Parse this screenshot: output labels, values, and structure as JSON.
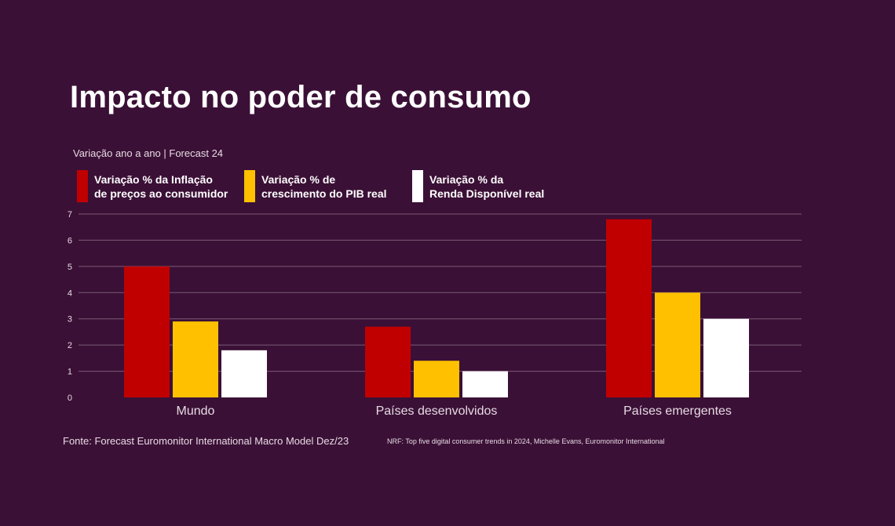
{
  "chart_data": {
    "type": "bar",
    "title": "Impacto no poder de consumo",
    "subtitle": "Variação ano a ano | Forecast 24",
    "categories": [
      "Mundo",
      "Países desenvolvidos",
      "Países emergentes"
    ],
    "series": [
      {
        "name": "Variação % da Inflação\nde preços ao consumidor",
        "color": "#c00000",
        "values": [
          5.0,
          2.7,
          6.8
        ]
      },
      {
        "name": "Variação % de\ncrescimento do PIB real",
        "color": "#ffc000",
        "values": [
          2.9,
          1.4,
          4.0
        ]
      },
      {
        "name": "Variação % da\nRenda Disponível real",
        "color": "#ffffff",
        "values": [
          1.8,
          1.0,
          3.0
        ]
      }
    ],
    "yticks": [
      "0",
      "1",
      "2",
      "3",
      "4",
      "5",
      "6",
      "7"
    ],
    "ylim": [
      0,
      7
    ],
    "grid": true,
    "legend_position": "top-left",
    "xlabel": "",
    "ylabel": ""
  },
  "footer": {
    "source": "Fonte: Forecast Euromonitor International Macro Model Dez/23",
    "reference": "NRF: Top five digital consumer trends in 2024, Michelle Evans, Euromonitor International"
  },
  "colors": {
    "background": "#3b1036",
    "grid": "#7b5a76",
    "axis_text": "#e6dbe4"
  }
}
